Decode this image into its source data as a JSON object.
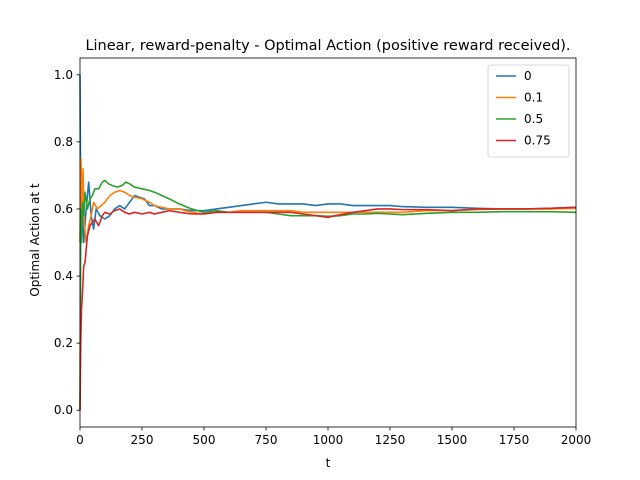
{
  "chart_data": {
    "type": "line",
    "title": "Linear, reward-penalty - Optimal Action (positive reward received).",
    "xlabel": "t",
    "ylabel": "Optimal Action at t",
    "xlim": [
      0,
      2000
    ],
    "ylim": [
      -0.05,
      1.05
    ],
    "xticks": [
      0,
      250,
      500,
      750,
      1000,
      1250,
      1500,
      1750,
      2000
    ],
    "yticks": [
      0.0,
      0.2,
      0.4,
      0.6,
      0.8,
      1.0
    ],
    "xtick_labels": [
      "0",
      "250",
      "500",
      "750",
      "1000",
      "1250",
      "1500",
      "1750",
      "2000"
    ],
    "ytick_labels": [
      "0.0",
      "0.2",
      "0.4",
      "0.6",
      "0.8",
      "1.0"
    ],
    "grid": false,
    "legend_position": "top-right",
    "series": [
      {
        "name": "0",
        "color": "#1f77b4",
        "points": [
          [
            0,
            1.0
          ],
          [
            3,
            0.55
          ],
          [
            8,
            0.62
          ],
          [
            15,
            0.5
          ],
          [
            25,
            0.6
          ],
          [
            35,
            0.68
          ],
          [
            45,
            0.58
          ],
          [
            55,
            0.54
          ],
          [
            65,
            0.6
          ],
          [
            80,
            0.58
          ],
          [
            100,
            0.57
          ],
          [
            120,
            0.58
          ],
          [
            140,
            0.6
          ],
          [
            160,
            0.61
          ],
          [
            180,
            0.6
          ],
          [
            200,
            0.62
          ],
          [
            220,
            0.64
          ],
          [
            240,
            0.635
          ],
          [
            260,
            0.63
          ],
          [
            280,
            0.61
          ],
          [
            300,
            0.61
          ],
          [
            330,
            0.6
          ],
          [
            360,
            0.6
          ],
          [
            400,
            0.6
          ],
          [
            450,
            0.595
          ],
          [
            500,
            0.595
          ],
          [
            550,
            0.6
          ],
          [
            600,
            0.605
          ],
          [
            650,
            0.61
          ],
          [
            700,
            0.615
          ],
          [
            750,
            0.62
          ],
          [
            800,
            0.615
          ],
          [
            850,
            0.615
          ],
          [
            900,
            0.615
          ],
          [
            950,
            0.61
          ],
          [
            1000,
            0.615
          ],
          [
            1050,
            0.615
          ],
          [
            1100,
            0.61
          ],
          [
            1150,
            0.61
          ],
          [
            1200,
            0.61
          ],
          [
            1250,
            0.61
          ],
          [
            1300,
            0.607
          ],
          [
            1400,
            0.605
          ],
          [
            1500,
            0.605
          ],
          [
            1600,
            0.602
          ],
          [
            1700,
            0.6
          ],
          [
            1800,
            0.6
          ],
          [
            1900,
            0.602
          ],
          [
            2000,
            0.605
          ]
        ]
      },
      {
        "name": "0.1",
        "color": "#ff7f0e",
        "points": [
          [
            0,
            0.5
          ],
          [
            4,
            0.75
          ],
          [
            8,
            0.6
          ],
          [
            12,
            0.72
          ],
          [
            18,
            0.55
          ],
          [
            25,
            0.5
          ],
          [
            35,
            0.55
          ],
          [
            45,
            0.58
          ],
          [
            55,
            0.62
          ],
          [
            70,
            0.6
          ],
          [
            85,
            0.61
          ],
          [
            100,
            0.62
          ],
          [
            120,
            0.64
          ],
          [
            140,
            0.65
          ],
          [
            160,
            0.655
          ],
          [
            180,
            0.65
          ],
          [
            200,
            0.64
          ],
          [
            220,
            0.635
          ],
          [
            250,
            0.63
          ],
          [
            280,
            0.62
          ],
          [
            300,
            0.61
          ],
          [
            330,
            0.605
          ],
          [
            360,
            0.6
          ],
          [
            400,
            0.6
          ],
          [
            450,
            0.59
          ],
          [
            500,
            0.585
          ],
          [
            550,
            0.59
          ],
          [
            600,
            0.59
          ],
          [
            650,
            0.595
          ],
          [
            700,
            0.595
          ],
          [
            750,
            0.595
          ],
          [
            800,
            0.595
          ],
          [
            850,
            0.595
          ],
          [
            900,
            0.59
          ],
          [
            950,
            0.59
          ],
          [
            1000,
            0.59
          ],
          [
            1050,
            0.59
          ],
          [
            1100,
            0.59
          ],
          [
            1150,
            0.59
          ],
          [
            1200,
            0.59
          ],
          [
            1250,
            0.59
          ],
          [
            1300,
            0.59
          ],
          [
            1400,
            0.595
          ],
          [
            1500,
            0.595
          ],
          [
            1600,
            0.598
          ],
          [
            1700,
            0.6
          ],
          [
            1800,
            0.6
          ],
          [
            1900,
            0.6
          ],
          [
            2000,
            0.602
          ]
        ]
      },
      {
        "name": "0.5",
        "color": "#2ca02c",
        "points": [
          [
            0,
            0.0
          ],
          [
            3,
            0.6
          ],
          [
            6,
            0.5
          ],
          [
            10,
            0.62
          ],
          [
            15,
            0.58
          ],
          [
            20,
            0.65
          ],
          [
            30,
            0.6
          ],
          [
            40,
            0.63
          ],
          [
            50,
            0.64
          ],
          [
            60,
            0.66
          ],
          [
            75,
            0.66
          ],
          [
            90,
            0.68
          ],
          [
            100,
            0.685
          ],
          [
            115,
            0.675
          ],
          [
            130,
            0.67
          ],
          [
            150,
            0.665
          ],
          [
            170,
            0.67
          ],
          [
            185,
            0.68
          ],
          [
            200,
            0.675
          ],
          [
            220,
            0.665
          ],
          [
            250,
            0.66
          ],
          [
            280,
            0.655
          ],
          [
            300,
            0.65
          ],
          [
            330,
            0.64
          ],
          [
            360,
            0.63
          ],
          [
            400,
            0.615
          ],
          [
            450,
            0.6
          ],
          [
            500,
            0.59
          ],
          [
            550,
            0.595
          ],
          [
            600,
            0.59
          ],
          [
            650,
            0.59
          ],
          [
            700,
            0.59
          ],
          [
            750,
            0.59
          ],
          [
            800,
            0.585
          ],
          [
            850,
            0.58
          ],
          [
            900,
            0.58
          ],
          [
            950,
            0.58
          ],
          [
            1000,
            0.578
          ],
          [
            1050,
            0.58
          ],
          [
            1100,
            0.585
          ],
          [
            1150,
            0.585
          ],
          [
            1200,
            0.587
          ],
          [
            1250,
            0.585
          ],
          [
            1300,
            0.583
          ],
          [
            1400,
            0.587
          ],
          [
            1500,
            0.59
          ],
          [
            1600,
            0.59
          ],
          [
            1700,
            0.592
          ],
          [
            1800,
            0.592
          ],
          [
            1900,
            0.592
          ],
          [
            2000,
            0.59
          ]
        ]
      },
      {
        "name": "0.75",
        "color": "#d62728",
        "points": [
          [
            0,
            0.0
          ],
          [
            3,
            0.2
          ],
          [
            6,
            0.3
          ],
          [
            10,
            0.35
          ],
          [
            15,
            0.43
          ],
          [
            20,
            0.44
          ],
          [
            25,
            0.48
          ],
          [
            30,
            0.52
          ],
          [
            40,
            0.55
          ],
          [
            50,
            0.56
          ],
          [
            60,
            0.57
          ],
          [
            75,
            0.55
          ],
          [
            90,
            0.58
          ],
          [
            100,
            0.59
          ],
          [
            120,
            0.585
          ],
          [
            140,
            0.595
          ],
          [
            160,
            0.6
          ],
          [
            180,
            0.59
          ],
          [
            200,
            0.585
          ],
          [
            220,
            0.59
          ],
          [
            250,
            0.585
          ],
          [
            280,
            0.59
          ],
          [
            300,
            0.585
          ],
          [
            330,
            0.59
          ],
          [
            360,
            0.595
          ],
          [
            400,
            0.59
          ],
          [
            450,
            0.585
          ],
          [
            500,
            0.585
          ],
          [
            550,
            0.59
          ],
          [
            600,
            0.59
          ],
          [
            650,
            0.59
          ],
          [
            700,
            0.59
          ],
          [
            750,
            0.59
          ],
          [
            800,
            0.59
          ],
          [
            850,
            0.59
          ],
          [
            900,
            0.585
          ],
          [
            950,
            0.58
          ],
          [
            1000,
            0.575
          ],
          [
            1050,
            0.583
          ],
          [
            1100,
            0.59
          ],
          [
            1150,
            0.595
          ],
          [
            1200,
            0.6
          ],
          [
            1250,
            0.6
          ],
          [
            1300,
            0.598
          ],
          [
            1400,
            0.598
          ],
          [
            1500,
            0.595
          ],
          [
            1600,
            0.6
          ],
          [
            1700,
            0.6
          ],
          [
            1800,
            0.6
          ],
          [
            1900,
            0.602
          ],
          [
            2000,
            0.605
          ]
        ]
      }
    ]
  }
}
